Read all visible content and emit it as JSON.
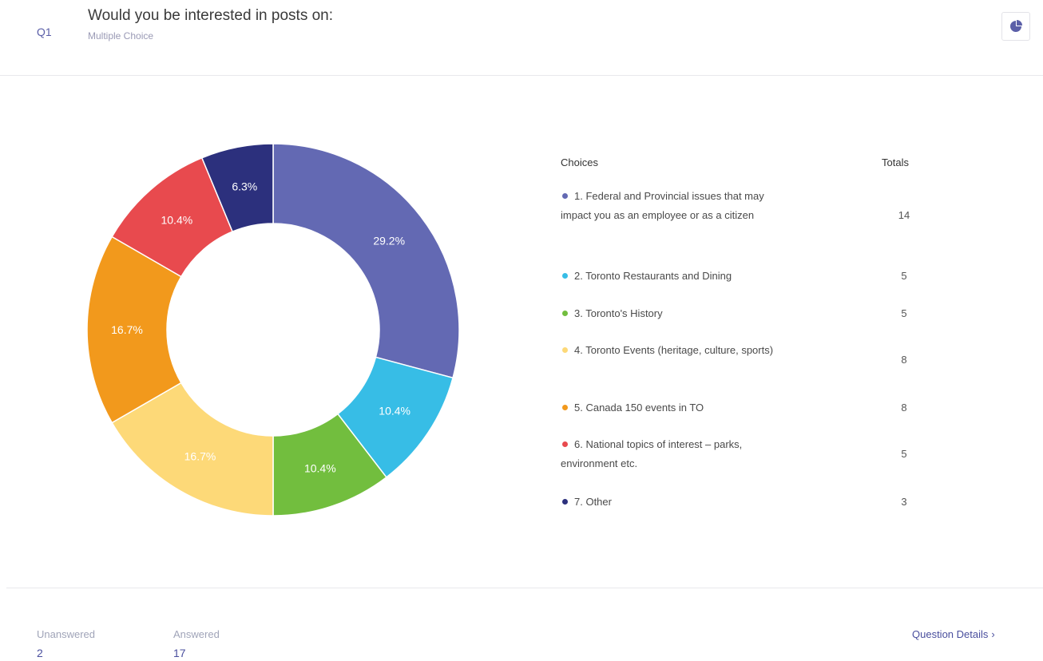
{
  "question": {
    "number": "Q1",
    "title": "Would you be interested in posts on:",
    "type": "Multiple Choice"
  },
  "legend": {
    "choices_header": "Choices",
    "totals_header": "Totals"
  },
  "chart_data": {
    "type": "pie",
    "donut": true,
    "categories": [
      "1. Federal and Provincial issues that may impact you as an employee or as a citizen",
      "2. Toronto Restaurants and Dining",
      "3. Toronto's History",
      "4. Toronto Events (heritage, culture, sports)",
      "5. Canada 150 events in TO",
      "6. National topics of interest – parks, environment etc.",
      "7. Other"
    ],
    "values": [
      14,
      5,
      5,
      8,
      8,
      5,
      3
    ],
    "percent_labels": [
      "29.2%",
      "10.4%",
      "10.4%",
      "16.7%",
      "16.7%",
      "10.4%",
      "6.3%"
    ],
    "colors": [
      "#6369b3",
      "#37bde6",
      "#72be3e",
      "#fdd978",
      "#f2991c",
      "#e84a4e",
      "#2c307d"
    ],
    "legend_placement": "right"
  },
  "footer": {
    "unanswered_label": "Unanswered",
    "unanswered_value": "2",
    "answered_label": "Answered",
    "answered_value": "17",
    "details_label": "Question Details",
    "details_chevron": "›"
  },
  "icons": {
    "chart_toggle": "pie-chart-icon"
  },
  "colors": {
    "accent": "#4a4f9e",
    "muted": "#9a9ab5"
  }
}
